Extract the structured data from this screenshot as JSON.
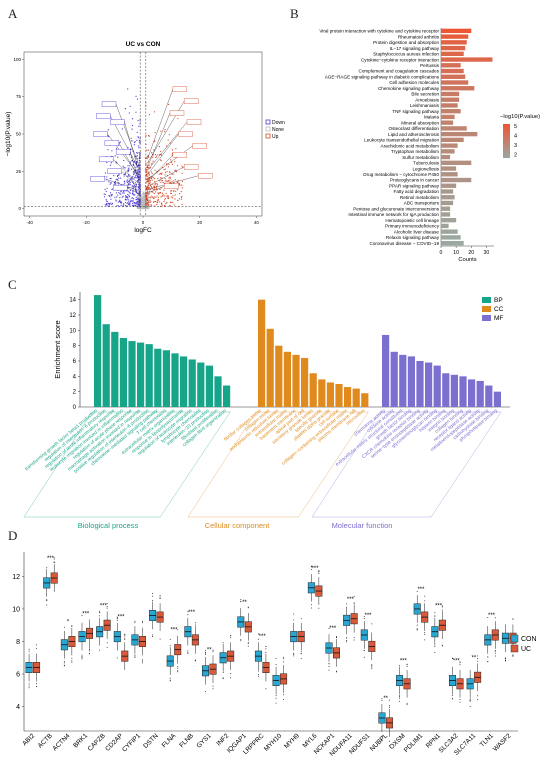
{
  "panels": {
    "a": "A",
    "b": "B",
    "c": "C",
    "d": "D"
  },
  "colors": {
    "down": "#4b3cd6",
    "none": "#bbbbbb",
    "up": "#d94a2b",
    "bp": "#17a589",
    "cc": "#e08a1e",
    "mf": "#7b6fd0",
    "con": "#2aa6d3",
    "uc": "#d95a3b",
    "kegg_low": "#9aa8a0",
    "kegg_high": "#ee5533"
  },
  "chart_data": [
    {
      "id": "volcano",
      "type": "scatter",
      "title": "UC vs CON",
      "xlabel": "logFC",
      "ylabel": "−log10(P.value)",
      "xlim": [
        -42,
        42
      ],
      "ylim": [
        -5,
        105
      ],
      "xticks": [
        "-40",
        "-20",
        "0",
        "20",
        "40"
      ],
      "yticks": [
        "0",
        "25",
        "50",
        "75",
        "100"
      ],
      "legend": {
        "position": "right",
        "items": [
          "Down",
          "None",
          "Up"
        ]
      }
    },
    {
      "id": "kegg",
      "type": "bar",
      "orientation": "horizontal",
      "xlabel": "Counts",
      "xlim": [
        0,
        35
      ],
      "xticks": [
        "0",
        "10",
        "20",
        "30"
      ],
      "legend_title": "−log10(P.value)",
      "legend_ticks": [
        "5",
        "4",
        "3",
        "2"
      ],
      "categories": [
        "Viral protein interaction with cytokine and cytokine receptor",
        "Rheumatoid arthritis",
        "Protein digestion and absorption",
        "IL−17 signaling pathway",
        "Staphylococcus aureus infection",
        "Cytokine−cytokine receptor interaction",
        "Pertussis",
        "Complement and coagulation cascades",
        "AGE−RAGE signaling pathway in diabetic complications",
        "Cell adhesion molecules",
        "Chemokine signaling pathway",
        "Bile secretion",
        "Amoebiasis",
        "Leishmaniasis",
        "TNF signaling pathway",
        "Malaria",
        "Mineral absorption",
        "Osteoclast differentiation",
        "Lipid and atherosclerosis",
        "Leukocyte transendothelial migration",
        "Arachidonic acid metabolism",
        "Tryptophan metabolism",
        "Sulfur metabolism",
        "Tuberculosis",
        "Legionellosis",
        "Drug metabolism − cytochrome P450",
        "Proteoglycans in cancer",
        "PPAR signaling pathway",
        "Fatty acid degradation",
        "Retinol metabolism",
        "ABC transporters",
        "Pentose and glucuronate interconversions",
        "Intestinal immune network for IgA production",
        "Hematopoietic cell lineage",
        "Primary immunodeficiency",
        "Alcoholic liver disease",
        "Relaxin signaling pathway",
        "Coronavirus disease − COVID−19"
      ],
      "values": [
        20,
        18,
        17,
        16,
        15,
        34,
        13,
        15,
        16,
        18,
        22,
        12,
        12,
        11,
        13,
        9,
        8,
        17,
        24,
        15,
        11,
        9,
        6,
        20,
        10,
        11,
        20,
        10,
        8,
        9,
        8,
        6,
        6,
        10,
        5,
        11,
        13,
        15
      ],
      "neglog10p": [
        5.6,
        5.3,
        5.1,
        5.0,
        4.9,
        4.9,
        4.6,
        4.6,
        4.5,
        4.4,
        4.3,
        4.1,
        4.0,
        4.0,
        3.9,
        3.9,
        3.8,
        3.7,
        3.6,
        3.6,
        3.5,
        3.4,
        3.4,
        3.3,
        3.2,
        3.2,
        3.1,
        3.0,
        2.9,
        2.8,
        2.8,
        2.7,
        2.6,
        2.5,
        2.5,
        2.4,
        2.3,
        2.3
      ]
    },
    {
      "id": "go",
      "type": "bar",
      "ylabel": "Enrichment score",
      "ylim": [
        0,
        15
      ],
      "yticks": [
        "0",
        "2",
        "4",
        "6",
        "8",
        "10",
        "12",
        "14"
      ],
      "legend": [
        "BP",
        "CC",
        "MF"
      ],
      "group_labels": [
        "Biological process",
        "Cellular component",
        "Molecular function"
      ],
      "series": [
        {
          "name": "BP",
          "categories": [
            "transforming growth factor beta1 production",
            "regulation of interleukin−6 production",
            "regulation of acute inflammatory response",
            "leukocyte migration involved in inflammation",
            "regulation of acute phase response",
            "macrophage activation involved in response",
            "positive regulation of interleukin−6 production",
            "chemokine−mediated signaling pathway",
            "T cell chemotaxis",
            "extracellular matrix organization",
            "response to lipopolysaccharide",
            "regulation of leukocyte migration",
            "lymphocyte chemotaxis",
            "interleukin−10 production",
            "fibroblast proliferation",
            "collagen fibril organization"
          ],
          "values": [
            14.6,
            10.8,
            9.8,
            9.0,
            8.6,
            8.4,
            8.2,
            7.6,
            7.4,
            7.0,
            6.6,
            6.2,
            5.8,
            5.4,
            4.0,
            2.8
          ]
        },
        {
          "name": "CC",
          "categories": [
            "fibrillar collagen trimer",
            "collagen trimer",
            "endoplasmic reticulum lumen",
            "extracellular matrix",
            "basement membrane",
            "apical part of cell",
            "secretory granule lumen",
            "specific granule",
            "platelet alpha granule",
            "cell surface",
            "collagen−containing extracellular matrix",
            "plasma membrane raft",
            "microvillus"
          ],
          "values": [
            14.0,
            10.2,
            8.0,
            7.2,
            6.8,
            6.4,
            4.4,
            3.6,
            3.2,
            3.0,
            2.6,
            2.4,
            1.8
          ]
        },
        {
          "name": "MF",
          "categories": [
            "chemokine activity",
            "cytokine activity",
            "extracellular matrix structural constituent",
            "growth factor binding",
            "CXCR chemokine receptor binding",
            "serine−type endopeptidase activity",
            "glycosaminoglycan binding",
            "heparin binding",
            "integrin binding",
            "collagen binding",
            "receptor ligand activity",
            "metalloendopeptidase activity",
            "carbohydrate binding",
            "phospholipase binding"
          ],
          "values": [
            9.4,
            7.2,
            6.8,
            6.6,
            6.0,
            5.8,
            5.4,
            4.4,
            4.2,
            4.0,
            3.6,
            3.4,
            2.8,
            2.0
          ]
        }
      ]
    },
    {
      "id": "boxplot",
      "type": "box",
      "ylim": [
        2.5,
        13.5
      ],
      "yticks": [
        "4",
        "6",
        "8",
        "10",
        "12"
      ],
      "legend": [
        "CON",
        "UC"
      ],
      "categories": [
        "ABI2",
        "ACTB",
        "ACTN4",
        "BRK1",
        "CAPZB",
        "CD2AP",
        "CYFIP1",
        "DSTN",
        "FLNA",
        "FLNB",
        "GYS1",
        "INF2",
        "IQGAP1",
        "LRPPRC",
        "MYH10",
        "MYH9",
        "MYL6",
        "NCKAP1",
        "NDUFA11",
        "NDUFS1",
        "NUBPL",
        "OXSM",
        "PDLIM1",
        "RPN1",
        "SLC3A2",
        "SLC7A11",
        "TLN1",
        "WASF2"
      ],
      "series": [
        {
          "name": "CON",
          "medians": [
            6.4,
            11.6,
            7.8,
            8.3,
            8.6,
            8.3,
            8.1,
            9.6,
            6.8,
            8.6,
            6.2,
            7.0,
            9.2,
            7.1,
            5.6,
            8.3,
            11.3,
            7.6,
            9.3,
            8.4,
            3.3,
            5.6,
            10.0,
            8.6,
            5.6,
            5.4,
            8.1,
            8.2
          ]
        },
        {
          "name": "UC",
          "medians": [
            6.4,
            11.9,
            8.0,
            8.5,
            9.0,
            7.1,
            8.0,
            9.5,
            7.5,
            8.1,
            6.3,
            7.1,
            8.9,
            6.4,
            5.7,
            8.3,
            11.1,
            7.3,
            9.4,
            7.7,
            3.0,
            5.4,
            9.5,
            9.0,
            5.4,
            5.8,
            8.4,
            8.2
          ]
        }
      ],
      "significance": [
        "",
        "***",
        "*",
        "***",
        "***",
        "***",
        "",
        "",
        "***",
        "***",
        "**",
        "",
        "**",
        "***",
        "",
        "",
        "***",
        "***",
        "***",
        "***",
        "**",
        "***",
        "***",
        "***",
        "***",
        "**",
        "***",
        ""
      ]
    }
  ]
}
